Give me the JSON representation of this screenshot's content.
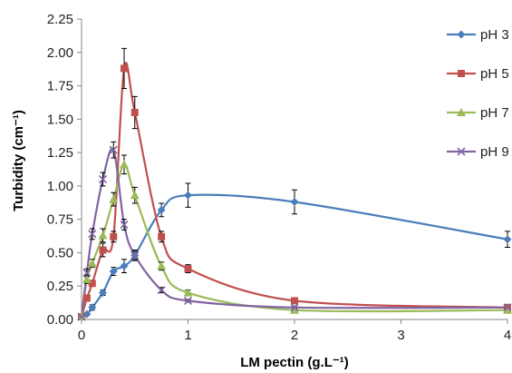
{
  "chart_data": {
    "type": "scatter",
    "xlabel": "LM pectin (g.L⁻¹)",
    "ylabel": "Turbidity (cm⁻¹)",
    "xlim": [
      0,
      4
    ],
    "ylim": [
      0,
      2.25
    ],
    "x_ticks": [
      "0",
      "1",
      "2",
      "3",
      "4"
    ],
    "y_ticks": [
      "0.00",
      "0.25",
      "0.50",
      "0.75",
      "1.00",
      "1.25",
      "1.50",
      "1.75",
      "2.00",
      "2.25"
    ],
    "grid": false,
    "legend_position": "right",
    "error_bars": true,
    "series": [
      {
        "name": "pH 3",
        "color": "#4a7ebb",
        "marker": "diamond",
        "points": [
          {
            "x": 0,
            "y": 0.02,
            "err": 0.01
          },
          {
            "x": 0.05,
            "y": 0.04,
            "err": 0.01
          },
          {
            "x": 0.1,
            "y": 0.09,
            "err": 0.02
          },
          {
            "x": 0.2,
            "y": 0.2,
            "err": 0.02
          },
          {
            "x": 0.3,
            "y": 0.36,
            "err": 0.03
          },
          {
            "x": 0.4,
            "y": 0.4,
            "err": 0.05
          },
          {
            "x": 0.5,
            "y": 0.48,
            "err": 0.04
          },
          {
            "x": 0.75,
            "y": 0.82,
            "err": 0.05
          },
          {
            "x": 1,
            "y": 0.93,
            "err": 0.09
          },
          {
            "x": 2,
            "y": 0.88,
            "err": 0.09
          },
          {
            "x": 4,
            "y": 0.6,
            "err": 0.06
          }
        ]
      },
      {
        "name": "pH 5",
        "color": "#c0504d",
        "marker": "square",
        "points": [
          {
            "x": 0,
            "y": 0.02,
            "err": 0.01
          },
          {
            "x": 0.05,
            "y": 0.16,
            "err": 0.02
          },
          {
            "x": 0.1,
            "y": 0.27,
            "err": 0.02
          },
          {
            "x": 0.2,
            "y": 0.52,
            "err": 0.05
          },
          {
            "x": 0.3,
            "y": 0.62,
            "err": 0.04
          },
          {
            "x": 0.4,
            "y": 1.88,
            "err": 0.15
          },
          {
            "x": 0.5,
            "y": 1.55,
            "err": 0.12
          },
          {
            "x": 0.75,
            "y": 0.62,
            "err": 0.04
          },
          {
            "x": 1,
            "y": 0.38,
            "err": 0.03
          },
          {
            "x": 2,
            "y": 0.14,
            "err": 0.02
          },
          {
            "x": 4,
            "y": 0.09,
            "err": 0.01
          }
        ]
      },
      {
        "name": "pH 7",
        "color": "#9bbb59",
        "marker": "triangle",
        "points": [
          {
            "x": 0,
            "y": 0.02,
            "err": 0.01
          },
          {
            "x": 0.05,
            "y": 0.3,
            "err": 0.03
          },
          {
            "x": 0.1,
            "y": 0.42,
            "err": 0.03
          },
          {
            "x": 0.2,
            "y": 0.63,
            "err": 0.05
          },
          {
            "x": 0.3,
            "y": 0.9,
            "err": 0.05
          },
          {
            "x": 0.4,
            "y": 1.16,
            "err": 0.07
          },
          {
            "x": 0.5,
            "y": 0.93,
            "err": 0.06
          },
          {
            "x": 0.75,
            "y": 0.4,
            "err": 0.03
          },
          {
            "x": 1,
            "y": 0.2,
            "err": 0.02
          },
          {
            "x": 2,
            "y": 0.07,
            "err": 0.01
          },
          {
            "x": 4,
            "y": 0.07,
            "err": 0.01
          }
        ]
      },
      {
        "name": "pH 9",
        "color": "#8064a2",
        "marker": "x",
        "points": [
          {
            "x": 0,
            "y": 0.02,
            "err": 0.01
          },
          {
            "x": 0.05,
            "y": 0.35,
            "err": 0.03
          },
          {
            "x": 0.1,
            "y": 0.64,
            "err": 0.04
          },
          {
            "x": 0.2,
            "y": 1.05,
            "err": 0.05
          },
          {
            "x": 0.3,
            "y": 1.27,
            "err": 0.06
          },
          {
            "x": 0.4,
            "y": 0.71,
            "err": 0.04
          },
          {
            "x": 0.5,
            "y": 0.48,
            "err": 0.03
          },
          {
            "x": 0.75,
            "y": 0.22,
            "err": 0.02
          },
          {
            "x": 1,
            "y": 0.14,
            "err": 0.01
          },
          {
            "x": 2,
            "y": 0.09,
            "err": 0.01
          },
          {
            "x": 4,
            "y": 0.09,
            "err": 0.01
          }
        ]
      }
    ]
  }
}
